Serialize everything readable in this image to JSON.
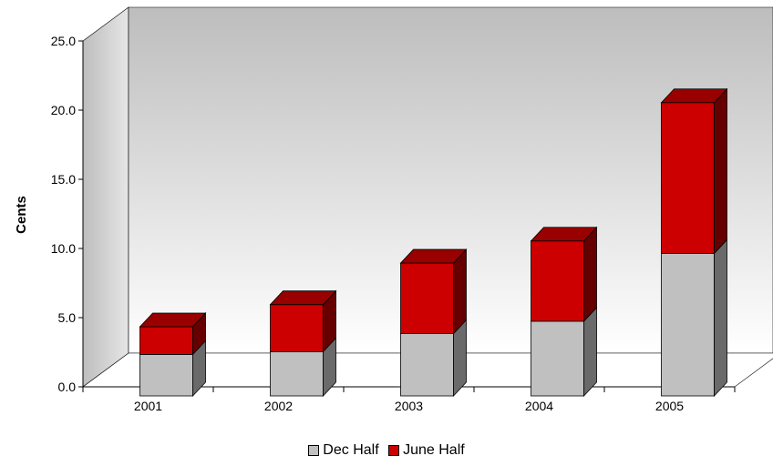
{
  "chart_data": {
    "type": "bar",
    "stacked": true,
    "three_d": true,
    "categories": [
      "2001",
      "2002",
      "2003",
      "2004",
      "2005"
    ],
    "series": [
      {
        "name": "Dec Half",
        "values": [
          3.0,
          3.2,
          4.5,
          5.4,
          10.3
        ],
        "color": "#c0c0c0"
      },
      {
        "name": "June Half",
        "values": [
          2.0,
          3.4,
          5.1,
          5.8,
          10.9
        ],
        "color": "#cc0000"
      }
    ],
    "ylabel": "Cents",
    "xlabel": "",
    "ylim": [
      0,
      25
    ],
    "yticks": [
      "0.0",
      "5.0",
      "10.0",
      "15.0",
      "20.0",
      "25.0"
    ],
    "legend_position": "bottom"
  }
}
